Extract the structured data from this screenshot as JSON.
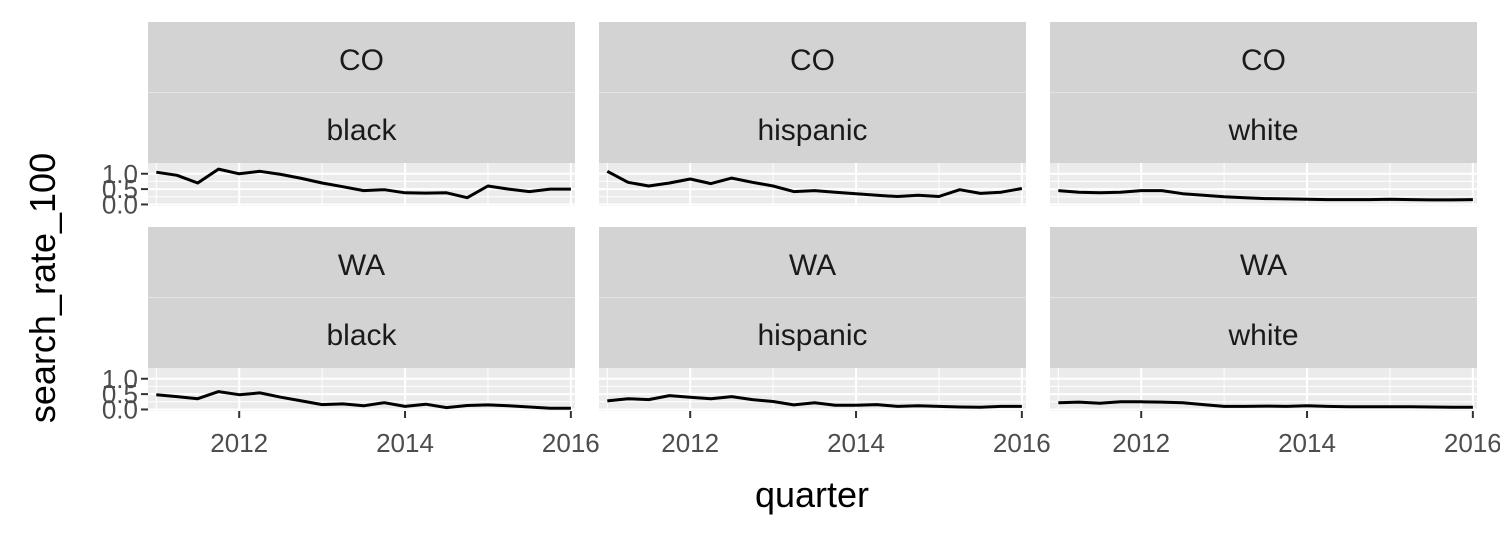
{
  "chart_data": {
    "type": "line",
    "layout": "facet-grid",
    "xlabel": "quarter",
    "ylabel": "search_rate_100",
    "xlim": [
      2010.9,
      2016.05
    ],
    "ylim": [
      -0.05,
      1.35
    ],
    "x_ticks": [
      2012,
      2014,
      2016
    ],
    "x_tick_labels": [
      "2012",
      "2014",
      "2016"
    ],
    "y_ticks": [
      0.0,
      0.5,
      1.0
    ],
    "y_tick_labels": [
      "0.0",
      "0.5",
      "1.0"
    ],
    "colors": {
      "line": "#000000",
      "strip": "#d3d3d3",
      "grid": "#ebebeb",
      "axis_text": "#4d4d4d"
    },
    "panels": [
      {
        "state": "CO",
        "race": "black",
        "x": [
          2011.0,
          2011.25,
          2011.5,
          2011.75,
          2012.0,
          2012.25,
          2012.5,
          2012.75,
          2013.0,
          2013.25,
          2013.5,
          2013.75,
          2014.0,
          2014.25,
          2014.5,
          2014.75,
          2015.0,
          2015.25,
          2015.5,
          2015.75,
          2016.0
        ],
        "y": [
          1.05,
          0.95,
          0.7,
          1.15,
          1.0,
          1.08,
          0.98,
          0.85,
          0.7,
          0.58,
          0.45,
          0.48,
          0.38,
          0.37,
          0.38,
          0.22,
          0.6,
          0.5,
          0.42,
          0.5,
          0.5
        ]
      },
      {
        "state": "CO",
        "race": "hispanic",
        "x": [
          2011.0,
          2011.25,
          2011.5,
          2011.75,
          2012.0,
          2012.25,
          2012.5,
          2012.75,
          2013.0,
          2013.25,
          2013.5,
          2013.75,
          2014.0,
          2014.25,
          2014.5,
          2014.75,
          2015.0,
          2015.25,
          2015.5,
          2015.75,
          2016.0
        ],
        "y": [
          1.08,
          0.72,
          0.6,
          0.7,
          0.83,
          0.68,
          0.86,
          0.72,
          0.6,
          0.42,
          0.45,
          0.4,
          0.35,
          0.3,
          0.26,
          0.3,
          0.26,
          0.48,
          0.36,
          0.4,
          0.52
        ]
      },
      {
        "state": "CO",
        "race": "white",
        "x": [
          2011.0,
          2011.25,
          2011.5,
          2011.75,
          2012.0,
          2012.25,
          2012.5,
          2012.75,
          2013.0,
          2013.25,
          2013.5,
          2013.75,
          2014.0,
          2014.25,
          2014.5,
          2014.75,
          2015.0,
          2015.25,
          2015.5,
          2015.75,
          2016.0
        ],
        "y": [
          0.45,
          0.4,
          0.38,
          0.4,
          0.45,
          0.45,
          0.35,
          0.3,
          0.25,
          0.22,
          0.19,
          0.18,
          0.17,
          0.16,
          0.16,
          0.16,
          0.17,
          0.16,
          0.15,
          0.15,
          0.16
        ]
      },
      {
        "state": "WA",
        "race": "black",
        "x": [
          2011.0,
          2011.25,
          2011.5,
          2011.75,
          2012.0,
          2012.25,
          2012.5,
          2012.75,
          2013.0,
          2013.25,
          2013.5,
          2013.75,
          2014.0,
          2014.25,
          2014.5,
          2014.75,
          2015.0,
          2015.25,
          2015.5,
          2015.75,
          2016.0
        ],
        "y": [
          0.48,
          0.42,
          0.35,
          0.58,
          0.48,
          0.54,
          0.4,
          0.28,
          0.16,
          0.18,
          0.12,
          0.22,
          0.1,
          0.17,
          0.06,
          0.13,
          0.15,
          0.12,
          0.08,
          0.04,
          0.04
        ]
      },
      {
        "state": "WA",
        "race": "hispanic",
        "x": [
          2011.0,
          2011.25,
          2011.5,
          2011.75,
          2012.0,
          2012.25,
          2012.5,
          2012.75,
          2013.0,
          2013.25,
          2013.5,
          2013.75,
          2014.0,
          2014.25,
          2014.5,
          2014.75,
          2015.0,
          2015.25,
          2015.5,
          2015.75,
          2016.0
        ],
        "y": [
          0.28,
          0.35,
          0.32,
          0.45,
          0.4,
          0.35,
          0.42,
          0.32,
          0.26,
          0.15,
          0.22,
          0.14,
          0.14,
          0.16,
          0.1,
          0.12,
          0.1,
          0.08,
          0.07,
          0.1,
          0.1
        ]
      },
      {
        "state": "WA",
        "race": "white",
        "x": [
          2011.0,
          2011.25,
          2011.5,
          2011.75,
          2012.0,
          2012.25,
          2012.5,
          2012.75,
          2013.0,
          2013.25,
          2013.5,
          2013.75,
          2014.0,
          2014.25,
          2014.5,
          2014.75,
          2015.0,
          2015.25,
          2015.5,
          2015.75,
          2016.0
        ],
        "y": [
          0.22,
          0.24,
          0.2,
          0.25,
          0.25,
          0.24,
          0.22,
          0.16,
          0.1,
          0.1,
          0.11,
          0.1,
          0.12,
          0.1,
          0.09,
          0.09,
          0.09,
          0.09,
          0.08,
          0.07,
          0.07
        ]
      }
    ]
  }
}
